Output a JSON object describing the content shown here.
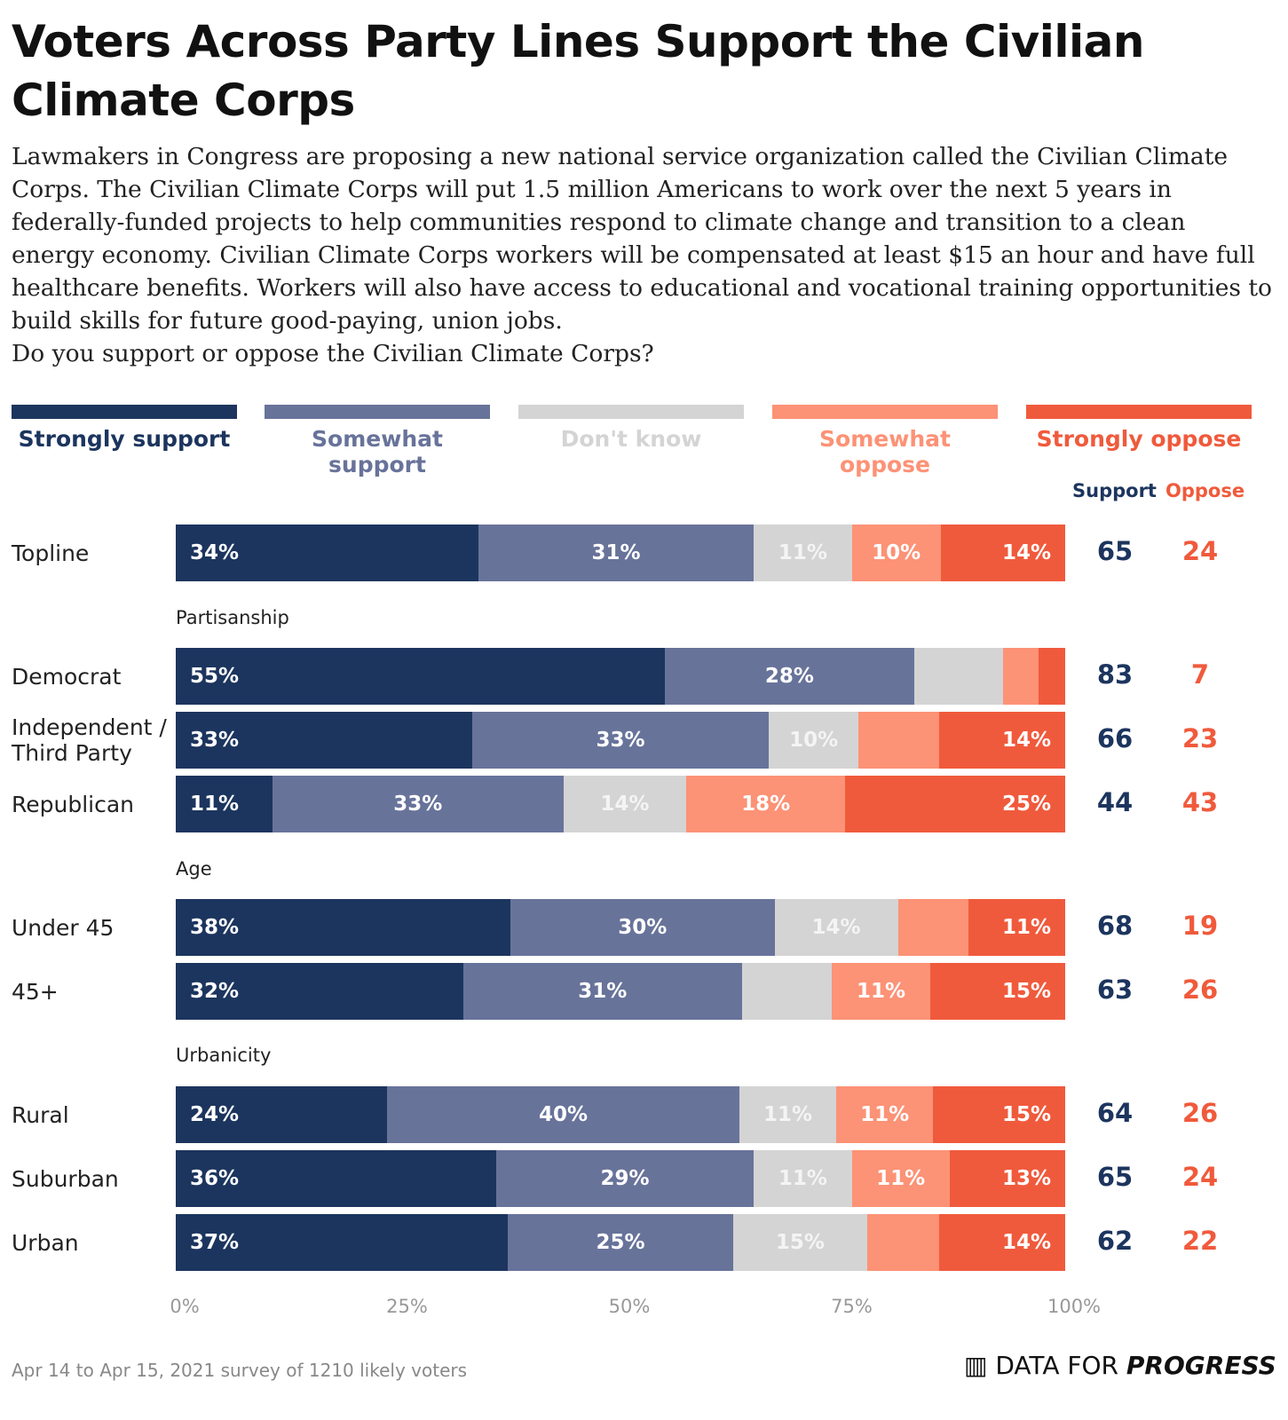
{
  "title": "Voters Across Party Lines Support the Civilian Climate Corps",
  "description": "Lawmakers in Congress are proposing a new national service organization called the Civilian Climate Corps. The Civilian Climate Corps will put 1.5 million Americans to work over the next 5 years in federally-funded projects to help communities respond to climate change and transition to a clean energy economy. Civilian Climate Corps workers will be compensated at least $15 an hour and have full healthcare benefits. Workers will also have access to educational and vocational training opportunities to build skills for future good-paying, union jobs.",
  "question": "Do you support or oppose the Civilian Climate Corps?",
  "footer": "Apr 14 to Apr 15, 2021 survey of 1210 likely voters",
  "logo": {
    "light": "DATA FOR ",
    "bold": "PROGRESS"
  },
  "chart_data": {
    "type": "bar",
    "orientation": "horizontal-stacked",
    "series": [
      {
        "name": "Strongly support",
        "color": "#1c355e"
      },
      {
        "name": "Somewhat support",
        "color": "#68739a"
      },
      {
        "name": "Don't know",
        "color": "#d4d4d4"
      },
      {
        "name": "Somewhat oppose",
        "color": "#fc9276"
      },
      {
        "name": "Strongly oppose",
        "color": "#f05a3c"
      }
    ],
    "totals_headers": {
      "support": "Support",
      "oppose": "Oppose"
    },
    "xticks": [
      "0%",
      "25%",
      "50%",
      "75%",
      "100%"
    ],
    "xlim": [
      0,
      100
    ],
    "rows": [
      {
        "label": "Topline",
        "values": [
          34,
          31,
          11,
          10,
          14
        ],
        "labels": [
          "34%",
          "31%",
          "11%",
          "10%",
          "14%"
        ],
        "support": "65",
        "oppose": "24"
      },
      {
        "group": "Partisanship"
      },
      {
        "label": "Democrat",
        "values": [
          55,
          28,
          10,
          4,
          3
        ],
        "labels": [
          "55%",
          "28%",
          "",
          "",
          ""
        ],
        "support": "83",
        "oppose": "7"
      },
      {
        "label": "Independent / Third Party",
        "values": [
          33,
          33,
          10,
          9,
          14
        ],
        "labels": [
          "33%",
          "33%",
          "10%",
          "",
          "14%"
        ],
        "support": "66",
        "oppose": "23"
      },
      {
        "label": "Republican",
        "values": [
          11,
          33,
          14,
          18,
          25
        ],
        "labels": [
          "11%",
          "33%",
          "14%",
          "18%",
          "25%"
        ],
        "support": "44",
        "oppose": "43"
      },
      {
        "group": "Age"
      },
      {
        "label": "Under 45",
        "values": [
          38,
          30,
          14,
          8,
          11
        ],
        "labels": [
          "38%",
          "30%",
          "14%",
          "",
          "11%"
        ],
        "support": "68",
        "oppose": "19"
      },
      {
        "label": "45+",
        "values": [
          32,
          31,
          10,
          11,
          15
        ],
        "labels": [
          "32%",
          "31%",
          "",
          "11%",
          "15%"
        ],
        "support": "63",
        "oppose": "26"
      },
      {
        "group": "Urbanicity"
      },
      {
        "label": "Rural",
        "values": [
          24,
          40,
          11,
          11,
          15
        ],
        "labels": [
          "24%",
          "40%",
          "11%",
          "11%",
          "15%"
        ],
        "support": "64",
        "oppose": "26"
      },
      {
        "label": "Suburban",
        "values": [
          36,
          29,
          11,
          11,
          13
        ],
        "labels": [
          "36%",
          "29%",
          "11%",
          "11%",
          "13%"
        ],
        "support": "65",
        "oppose": "24"
      },
      {
        "label": "Urban",
        "values": [
          37,
          25,
          15,
          8,
          14
        ],
        "labels": [
          "37%",
          "25%",
          "15%",
          "",
          "14%"
        ],
        "support": "62",
        "oppose": "22"
      }
    ]
  }
}
